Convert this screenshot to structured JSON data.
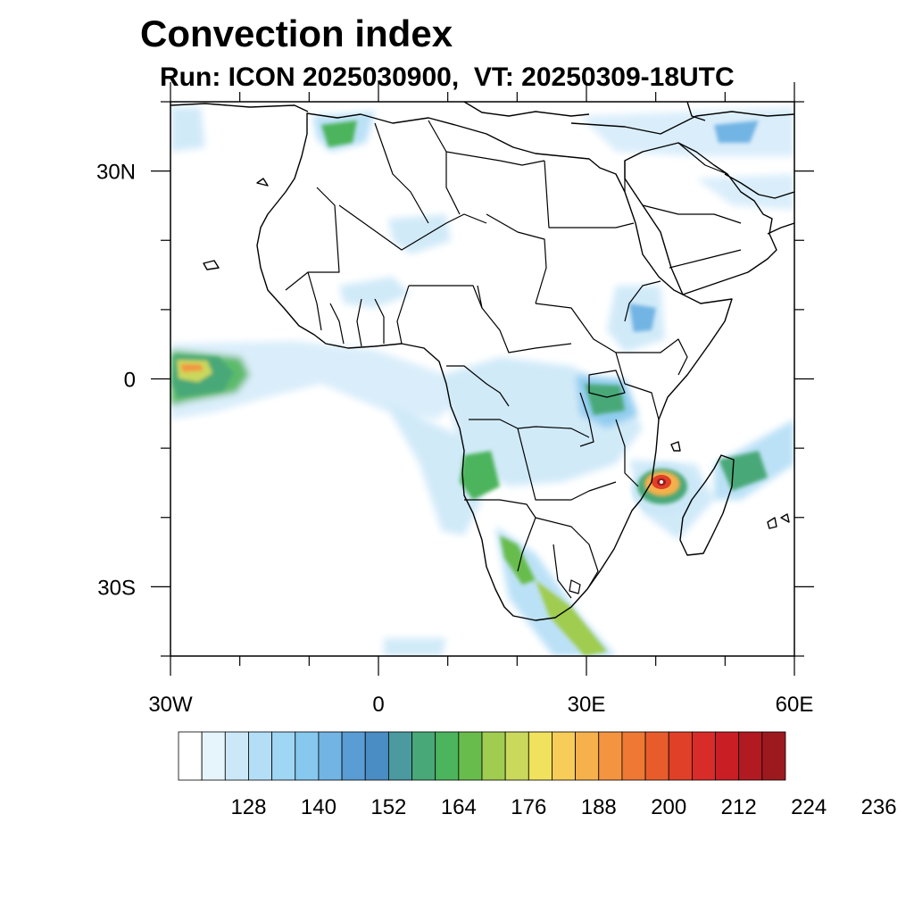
{
  "title": "Convection index",
  "subtitle": "Run: ICON 2025030900,  VT: 20250309-18UTC",
  "map": {
    "lon_range": [
      -30,
      60
    ],
    "lat_range": [
      -40,
      40
    ],
    "lat_ticks": [
      {
        "value": 30,
        "label": "30N"
      },
      {
        "value": 0,
        "label": "0"
      },
      {
        "value": -30,
        "label": "30S"
      }
    ],
    "lon_ticks": [
      {
        "value": -30,
        "label": "30W"
      },
      {
        "value": 0,
        "label": "0"
      },
      {
        "value": 30,
        "label": "30E"
      },
      {
        "value": 60,
        "label": "60E"
      }
    ]
  },
  "colorbar": {
    "colors": [
      "#ffffff",
      "#e6f4fc",
      "#cce8f8",
      "#b4def6",
      "#9ed6f4",
      "#86c8ee",
      "#72b4e4",
      "#5a9cd4",
      "#4a8cc4",
      "#4a9aa0",
      "#48a878",
      "#4cb45c",
      "#68bc4c",
      "#a0cc50",
      "#cad85c",
      "#f0e25c",
      "#f8cc58",
      "#f6b04c",
      "#f49440",
      "#ee7834",
      "#e85c2c",
      "#e04028",
      "#d82c28",
      "#c81e24",
      "#b21a22",
      "#9c1a1e"
    ],
    "labels": [
      "128",
      "140",
      "152",
      "164",
      "176",
      "188",
      "200",
      "212",
      "224",
      "236"
    ]
  }
}
